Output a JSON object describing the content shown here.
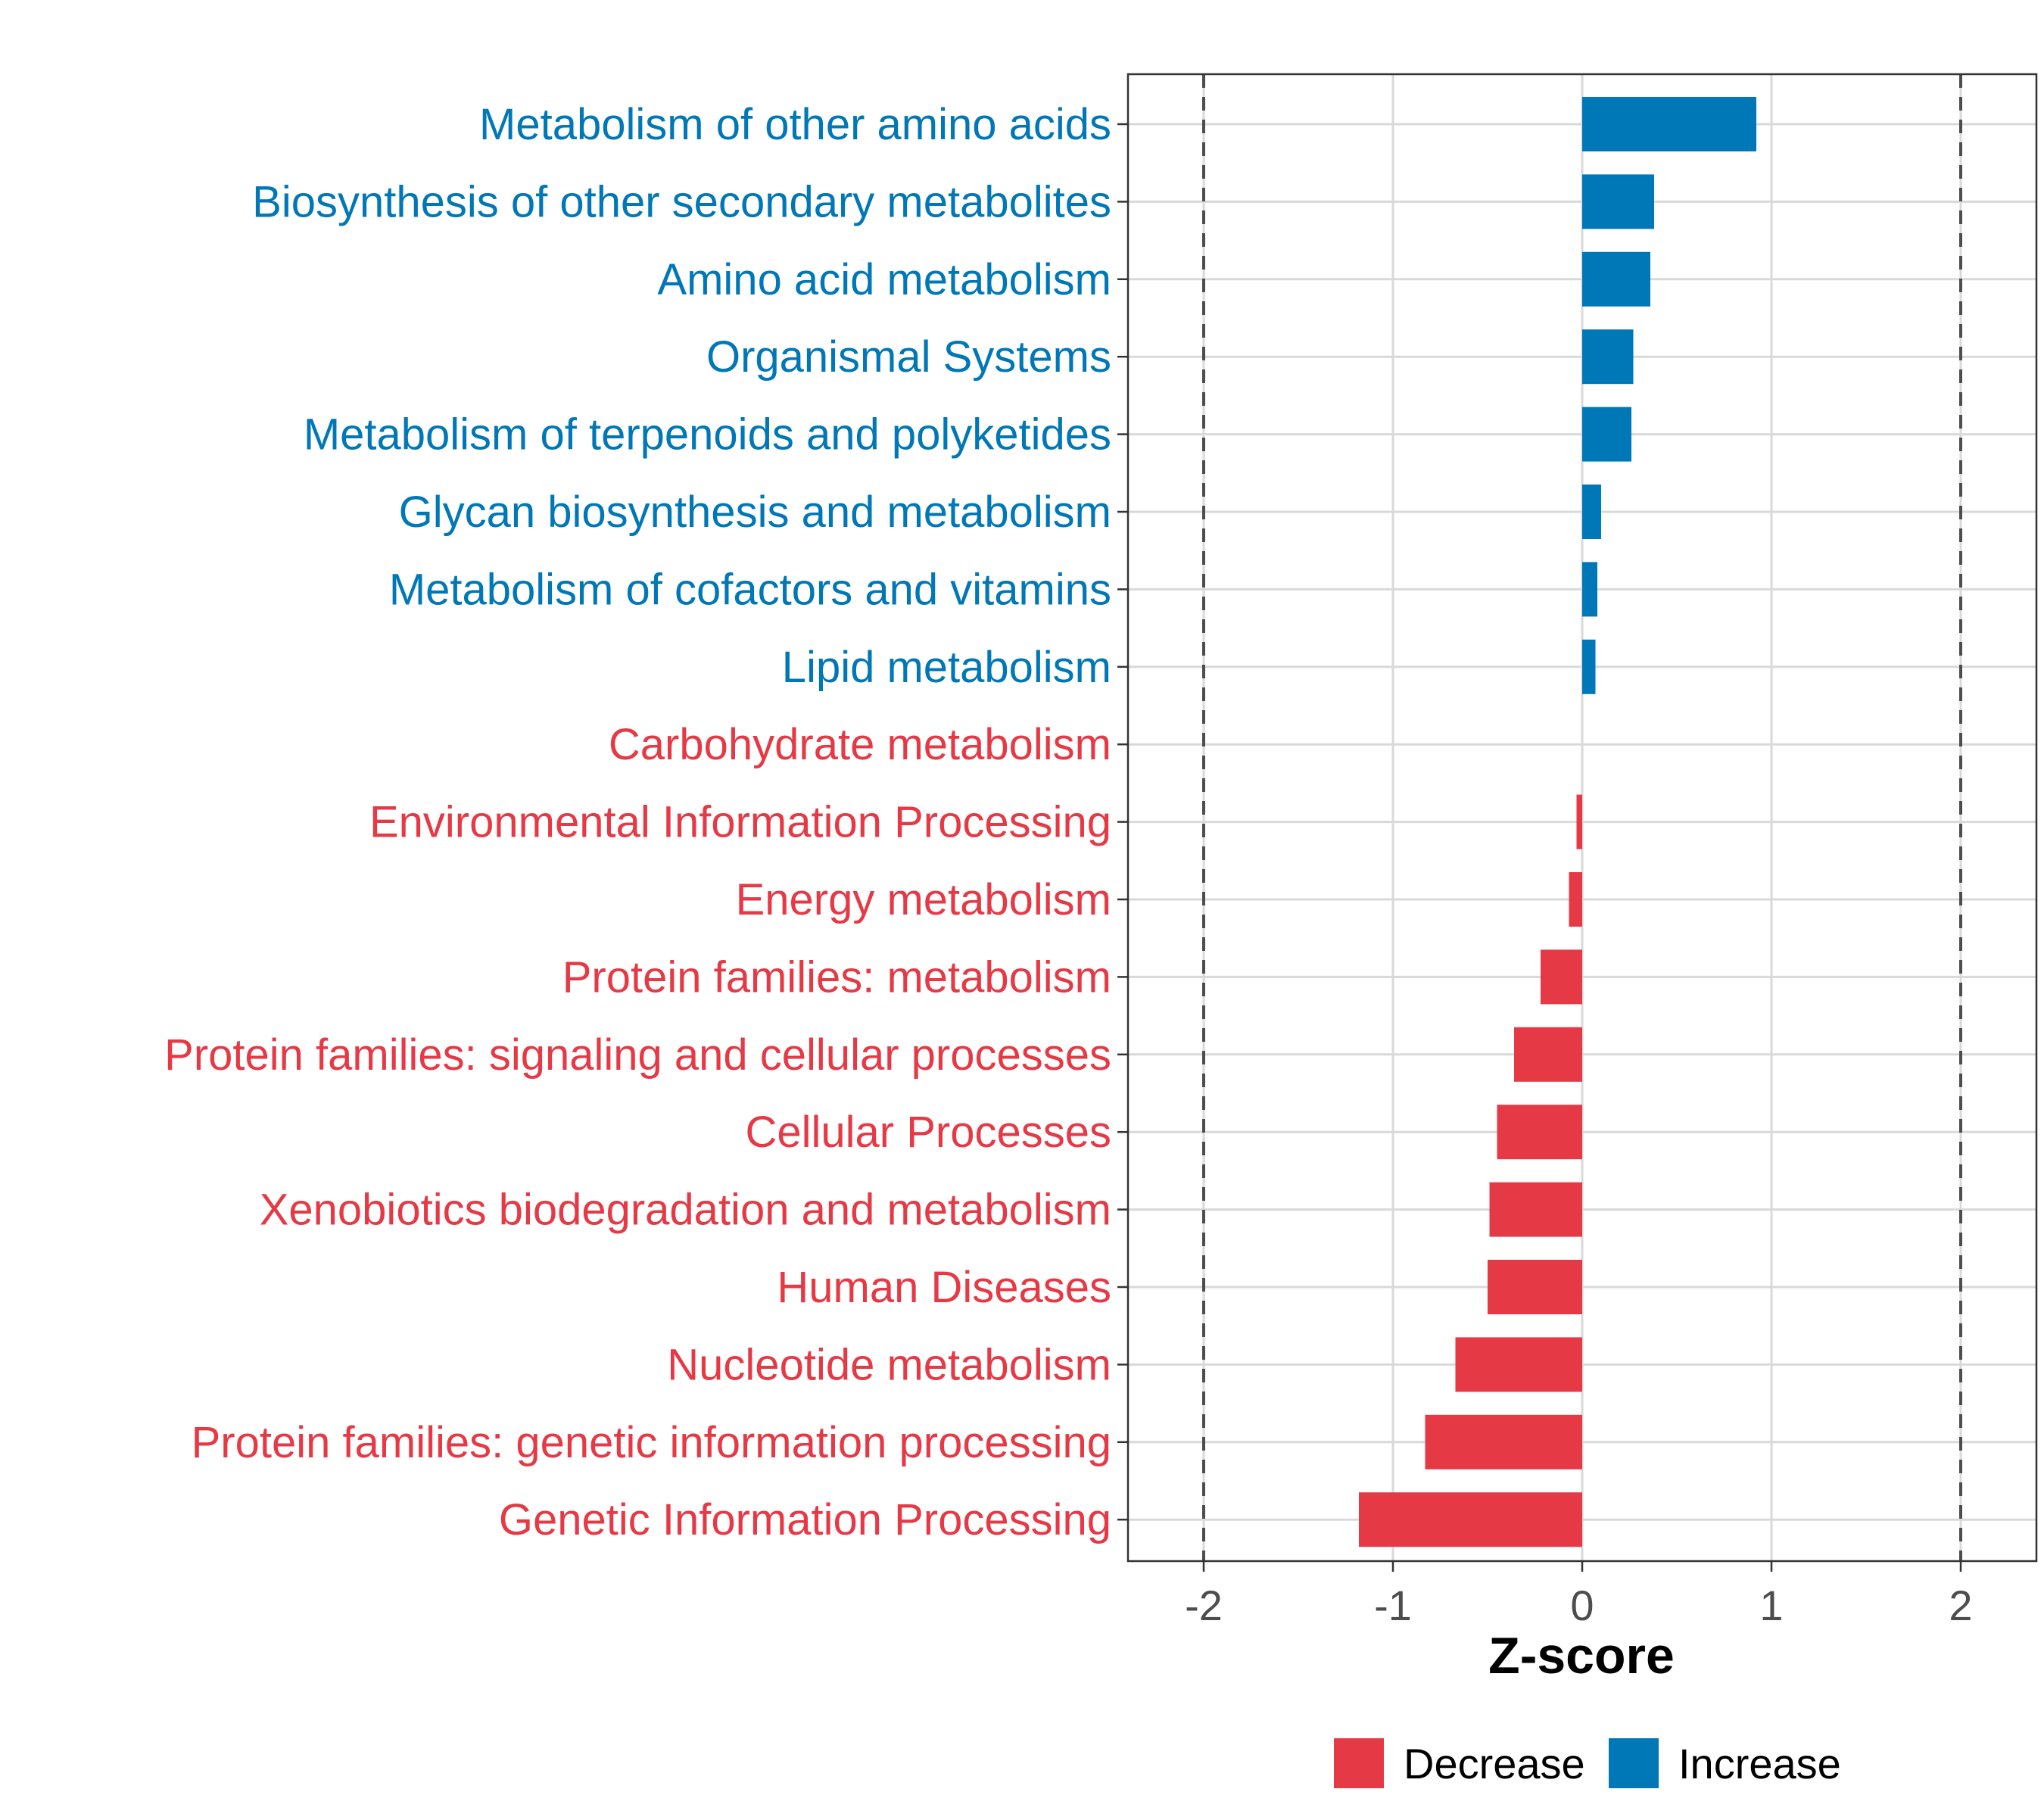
{
  "chart_data": {
    "type": "bar",
    "orientation": "horizontal",
    "categories": [
      "Metabolism of other amino acids",
      "Biosynthesis of other secondary metabolites",
      "Amino acid metabolism",
      "Organismal Systems",
      "Metabolism of terpenoids and polyketides",
      "Glycan biosynthesis and metabolism",
      "Metabolism of cofactors and vitamins",
      "Lipid metabolism",
      "Carbohydrate metabolism",
      "Environmental Information Processing",
      "Energy metabolism",
      "Protein families: metabolism",
      "Protein families: signaling and cellular processes",
      "Cellular Processes",
      "Xenobiotics biodegradation and metabolism",
      "Human Diseases",
      "Nucleotide metabolism",
      "Protein families: genetic information processing",
      "Genetic Information Processing"
    ],
    "values": [
      0.92,
      0.38,
      0.36,
      0.27,
      0.26,
      0.1,
      0.08,
      0.07,
      0.0,
      -0.03,
      -0.07,
      -0.22,
      -0.36,
      -0.45,
      -0.49,
      -0.5,
      -0.67,
      -0.83,
      -1.18
    ],
    "groups": [
      "Increase",
      "Increase",
      "Increase",
      "Increase",
      "Increase",
      "Increase",
      "Increase",
      "Increase",
      "Decrease",
      "Decrease",
      "Decrease",
      "Decrease",
      "Decrease",
      "Decrease",
      "Decrease",
      "Decrease",
      "Decrease",
      "Decrease",
      "Decrease"
    ],
    "xlabel": "Z-score",
    "xlim": [
      -2.4,
      2.4
    ],
    "xticks": [
      -2,
      -1,
      0,
      1,
      2
    ],
    "xtick_labels": [
      "-2",
      "-1",
      "0",
      "1",
      "2"
    ],
    "reference_lines": [
      -2,
      2
    ],
    "grid": true,
    "legend": {
      "placement": "bottom",
      "entries": [
        {
          "name": "Decrease",
          "color": "#e63946"
        },
        {
          "name": "Increase",
          "color": "#0077b6"
        }
      ]
    },
    "colors": {
      "Decrease": "#e63946",
      "Increase": "#0077b6",
      "grid": "#d9d9d9",
      "reference": "#4d4d4d",
      "frame": "#333333"
    }
  }
}
